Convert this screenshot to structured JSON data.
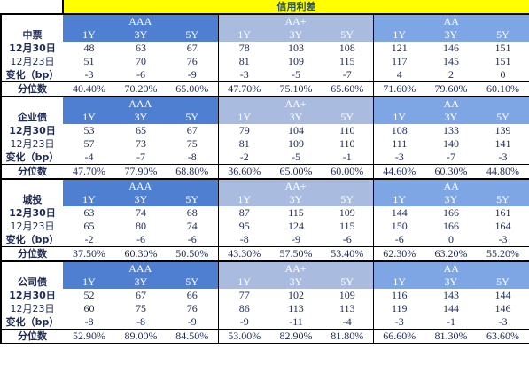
{
  "title": "信用利差",
  "rating_groups": [
    "AAA",
    "AA+",
    "AA"
  ],
  "tenors": [
    "1Y",
    "3Y",
    "5Y"
  ],
  "row_labels": {
    "date1": "12月30日",
    "date2": "12月23日",
    "change": "变化（bp）",
    "percentile": "分位数"
  },
  "sections": [
    {
      "name": "中票",
      "date1": [
        "48",
        "63",
        "67",
        "78",
        "103",
        "108",
        "121",
        "146",
        "151"
      ],
      "date2": [
        "51",
        "70",
        "76",
        "81",
        "109",
        "115",
        "117",
        "145",
        "151"
      ],
      "change": [
        "-3",
        "-6",
        "-9",
        "-3",
        "-5",
        "-7",
        "4",
        "2",
        "0"
      ],
      "percentile": [
        "40.40%",
        "70.20%",
        "65.00%",
        "47.70%",
        "75.10%",
        "65.60%",
        "71.60%",
        "79.60%",
        "60.10%"
      ]
    },
    {
      "name": "企业债",
      "date1": [
        "53",
        "65",
        "67",
        "79",
        "104",
        "110",
        "108",
        "133",
        "139"
      ],
      "date2": [
        "57",
        "73",
        "75",
        "81",
        "109",
        "110",
        "111",
        "140",
        "141"
      ],
      "change": [
        "-4",
        "-7",
        "-8",
        "-2",
        "-5",
        "-1",
        "-3",
        "-7",
        "-3"
      ],
      "percentile": [
        "47.70%",
        "77.90%",
        "68.80%",
        "36.60%",
        "65.00%",
        "60.00%",
        "44.60%",
        "60.30%",
        "44.80%"
      ]
    },
    {
      "name": "城投",
      "date1": [
        "63",
        "74",
        "68",
        "87",
        "115",
        "109",
        "144",
        "166",
        "161"
      ],
      "date2": [
        "65",
        "80",
        "74",
        "95",
        "124",
        "115",
        "150",
        "166",
        "164"
      ],
      "change": [
        "-2",
        "-6",
        "-6",
        "-8",
        "-9",
        "-6",
        "-6",
        "0",
        "-3"
      ],
      "percentile": [
        "37.50%",
        "60.30%",
        "50.50%",
        "43.30%",
        "57.50%",
        "53.40%",
        "62.30%",
        "63.20%",
        "55.20%"
      ]
    },
    {
      "name": "公司债",
      "date1": [
        "52",
        "67",
        "66",
        "77",
        "102",
        "109",
        "116",
        "143",
        "144"
      ],
      "date2": [
        "60",
        "75",
        "76",
        "86",
        "113",
        "113",
        "119",
        "144",
        "146"
      ],
      "change": [
        "-8",
        "-8",
        "-9",
        "-9",
        "-11",
        "-4",
        "-3",
        "-1",
        "-3"
      ],
      "percentile": [
        "52.90%",
        "89.00%",
        "84.50%",
        "53.00%",
        "82.90%",
        "81.80%",
        "66.60%",
        "81.30%",
        "63.60%"
      ]
    }
  ]
}
